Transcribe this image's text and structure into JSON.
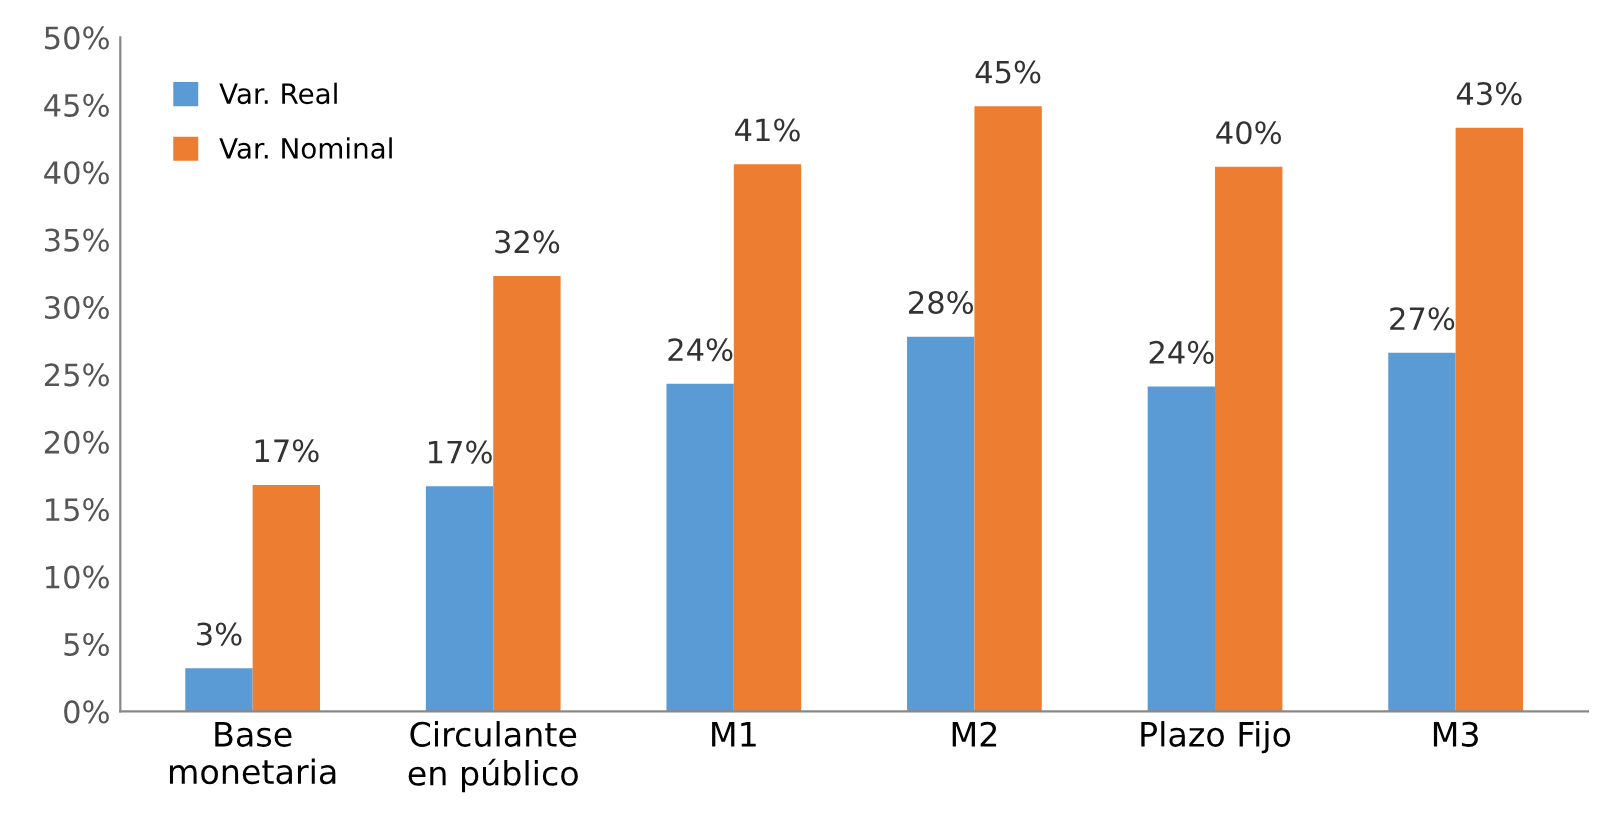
{
  "chart_data": {
    "type": "bar",
    "categories": [
      "Base\nmonetaria",
      "Circulante\nen público",
      "M1",
      "M2",
      "Plazo Fijo",
      "M3"
    ],
    "series": [
      {
        "name": "Var. Real",
        "color": "#5b9bd5",
        "values": [
          3.2,
          16.7,
          24.3,
          27.8,
          24.1,
          26.6
        ],
        "value_labels": [
          "3%",
          "17%",
          "24%",
          "28%",
          "24%",
          "27%"
        ]
      },
      {
        "name": "Var. Nominal",
        "color": "#ed7d31",
        "values": [
          16.8,
          32.3,
          40.6,
          44.9,
          40.4,
          43.3
        ],
        "value_labels": [
          "17%",
          "32%",
          "41%",
          "45%",
          "40%",
          "43%"
        ]
      }
    ],
    "ylim": [
      0,
      50
    ],
    "yticks": [
      {
        "value": 0,
        "label": "0%"
      },
      {
        "value": 5,
        "label": "5%"
      },
      {
        "value": 10,
        "label": "10%"
      },
      {
        "value": 15,
        "label": "15%"
      },
      {
        "value": 20,
        "label": "20%"
      },
      {
        "value": 25,
        "label": "25%"
      },
      {
        "value": 30,
        "label": "30%"
      },
      {
        "value": 35,
        "label": "35%"
      },
      {
        "value": 40,
        "label": "40%"
      },
      {
        "value": 45,
        "label": "45%"
      },
      {
        "value": 50,
        "label": "50%"
      }
    ],
    "legend": "top left"
  }
}
